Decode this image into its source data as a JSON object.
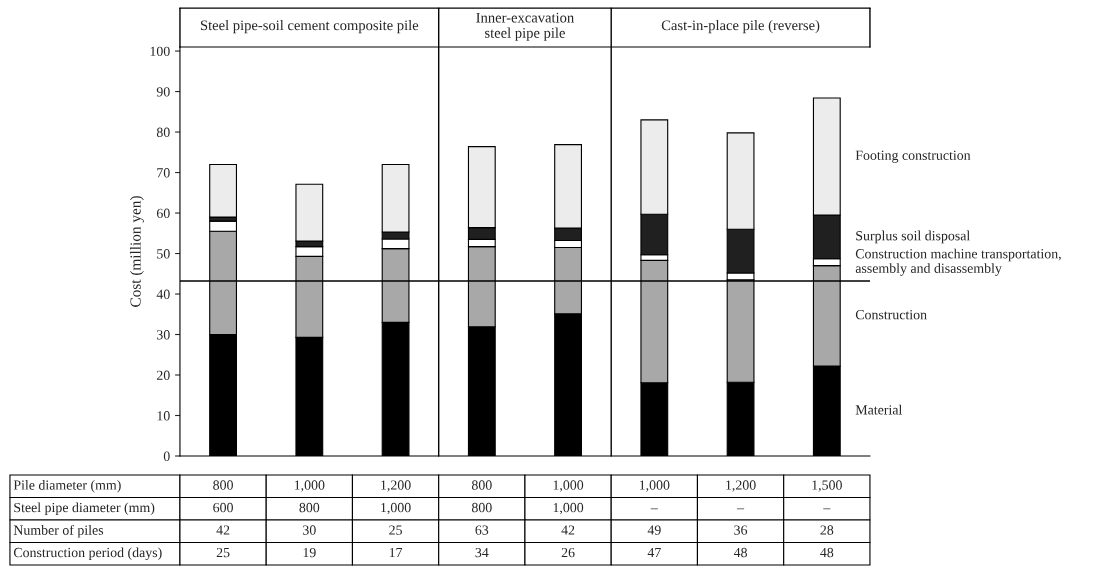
{
  "chart_data": {
    "type": "bar",
    "stacked": true,
    "ylabel": "Cost (million yen)",
    "categories": [
      null,
      null,
      null,
      null,
      null,
      null,
      null,
      null
    ],
    "series": [
      {
        "name": "Material",
        "color": "#000000",
        "values": [
          30.0,
          29.3,
          33.0,
          31.9,
          35.1,
          18.1,
          18.2,
          22.2
        ]
      },
      {
        "name": "Construction",
        "color": "#a8a8a8",
        "values": [
          25.5,
          20.0,
          18.2,
          19.8,
          16.4,
          30.2,
          25.3,
          24.8
        ]
      },
      {
        "name": "Construction machine transportation,\nassembly and disassembly",
        "color": "#ffffff",
        "values": [
          2.5,
          2.4,
          2.4,
          1.8,
          1.7,
          1.4,
          1.7,
          1.7
        ]
      },
      {
        "name": "Surplus soil disposal",
        "color": "#202020",
        "values": [
          1.0,
          1.4,
          1.7,
          2.9,
          3.1,
          10.0,
          10.8,
          10.8
        ]
      },
      {
        "name": "Footing construction",
        "color": "#ececec",
        "values": [
          13.0,
          14.0,
          16.7,
          20.0,
          20.6,
          23.3,
          23.8,
          28.9
        ]
      }
    ],
    "ylim": [
      0,
      101
    ],
    "yticks": [
      0,
      10,
      20,
      30,
      40,
      50,
      60,
      70,
      80,
      90,
      100
    ],
    "ref_lines": [
      {
        "axis": "y",
        "value": 43.2,
        "color": "#000000"
      }
    ],
    "grid": false,
    "legend": false,
    "tick_labels": "y",
    "annotations": [
      "Steel pipe-soil cement composite pile",
      "Inner-excavation\nsteel pipe pile",
      "Cast-in-place pile (reverse)",
      "Pile diameter (mm)",
      "800",
      "1,000",
      "1,200",
      "800",
      "1,000",
      "1,000",
      "1,200",
      "1,500",
      "Steel pipe diameter (mm)",
      "600",
      "800",
      "1,000",
      "800",
      "1,000",
      "–",
      "–",
      "–",
      "Number of piles",
      "42",
      "30",
      "25",
      "63",
      "42",
      "49",
      "36",
      "28",
      "Construction period (days)",
      "25",
      "19",
      "17",
      "34",
      "26",
      "47",
      "48",
      "48"
    ]
  }
}
